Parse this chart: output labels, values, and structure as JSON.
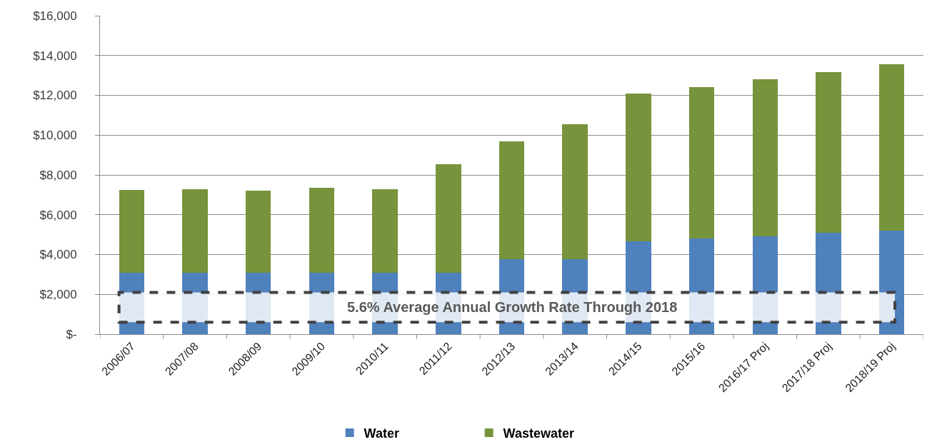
{
  "chart_data": {
    "type": "bar",
    "stacked": true,
    "categories": [
      "2006/07",
      "2007/08",
      "2008/09",
      "2009/10",
      "2010/11",
      "2011/12",
      "2012/13",
      "2013/14",
      "2014/15",
      "2015/16",
      "2016/17 Proj",
      "2017/18 Proj",
      "2018/19 Proj"
    ],
    "series": [
      {
        "name": "Water",
        "color": "#4f81bd",
        "values": [
          3100,
          3100,
          3100,
          3100,
          3100,
          3100,
          3750,
          3750,
          4650,
          4800,
          4900,
          5100,
          5200
        ]
      },
      {
        "name": "Wastewater",
        "color": "#77933c",
        "values": [
          4150,
          4200,
          4100,
          4250,
          4200,
          5450,
          5950,
          6800,
          7450,
          7600,
          7900,
          8050,
          8350
        ]
      }
    ],
    "ylim": [
      0,
      16000
    ],
    "yticks": [
      {
        "value": 0,
        "label": "$-"
      },
      {
        "value": 2000,
        "label": "$2,000"
      },
      {
        "value": 4000,
        "label": "$4,000"
      },
      {
        "value": 6000,
        "label": "$6,000"
      },
      {
        "value": 8000,
        "label": "$8,000"
      },
      {
        "value": 10000,
        "label": "$10,000"
      },
      {
        "value": 12000,
        "label": "$12,000"
      },
      {
        "value": 14000,
        "label": "$14,000"
      },
      {
        "value": 16000,
        "label": "$16,000"
      }
    ],
    "grid": "y",
    "legend": "bottom",
    "bands": [
      {
        "axis": "y",
        "from": 600,
        "to": 2100,
        "label": "5.6% Average Annual Growth Rate Through 2018",
        "color": "#ffffff"
      }
    ]
  }
}
